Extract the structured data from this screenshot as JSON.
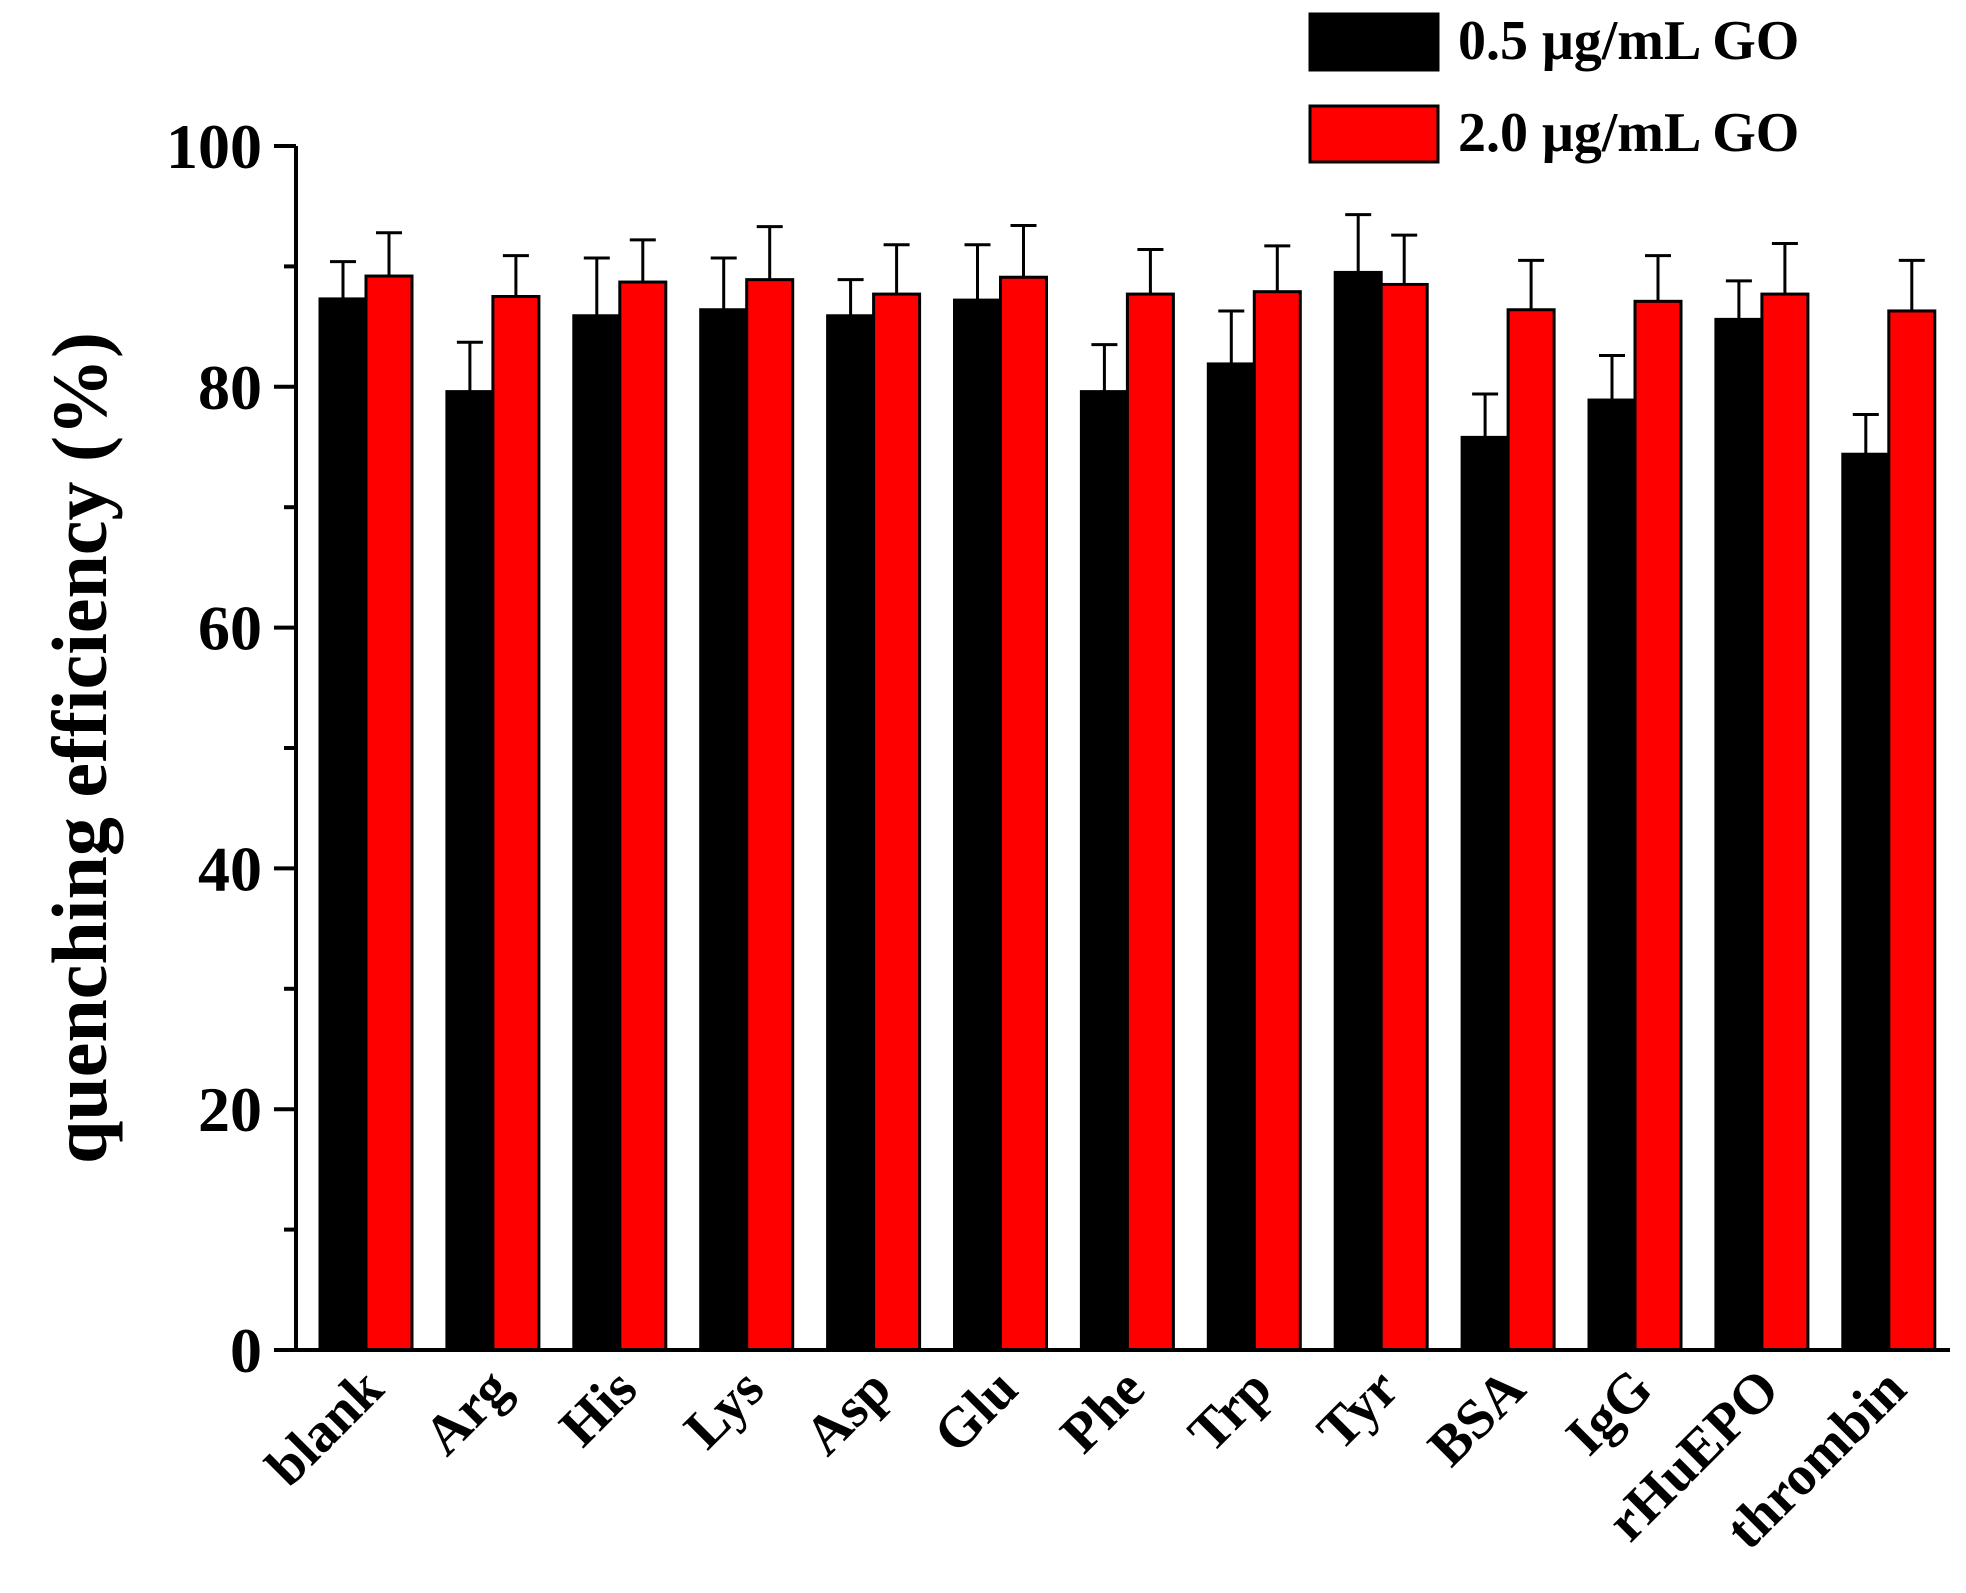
{
  "chart_data": {
    "type": "bar",
    "title": "",
    "xlabel": "",
    "ylabel": "quenching efficiency (%)",
    "ylim": [
      0,
      100
    ],
    "yticks": [
      0,
      20,
      40,
      60,
      80,
      100
    ],
    "categories": [
      "blank",
      "Arg",
      "His",
      "Lys",
      "Asp",
      "Glu",
      "Phe",
      "Trp",
      "Tyr",
      "BSA",
      "IgG",
      "rHuEPO",
      "thrombin"
    ],
    "series": [
      {
        "name": "0.5 μg/mL GO",
        "color": "#000000",
        "values": [
          87.3,
          79.6,
          85.9,
          86.4,
          85.9,
          87.2,
          79.6,
          81.9,
          89.5,
          75.8,
          78.9,
          85.6,
          74.4
        ],
        "errors": [
          3.1,
          4.1,
          4.8,
          4.3,
          3.0,
          4.6,
          3.9,
          4.4,
          4.8,
          3.6,
          3.7,
          3.2,
          3.3
        ]
      },
      {
        "name": "2.0 μg/mL GO",
        "color": "#ff0000",
        "values": [
          89.2,
          87.5,
          88.7,
          88.9,
          87.7,
          89.1,
          87.7,
          87.9,
          88.5,
          86.4,
          87.1,
          87.7,
          86.3
        ],
        "errors": [
          3.6,
          3.4,
          3.5,
          4.4,
          4.1,
          4.3,
          3.7,
          3.8,
          4.1,
          4.1,
          3.8,
          4.2,
          4.2
        ]
      }
    ],
    "legend": "top-right"
  }
}
